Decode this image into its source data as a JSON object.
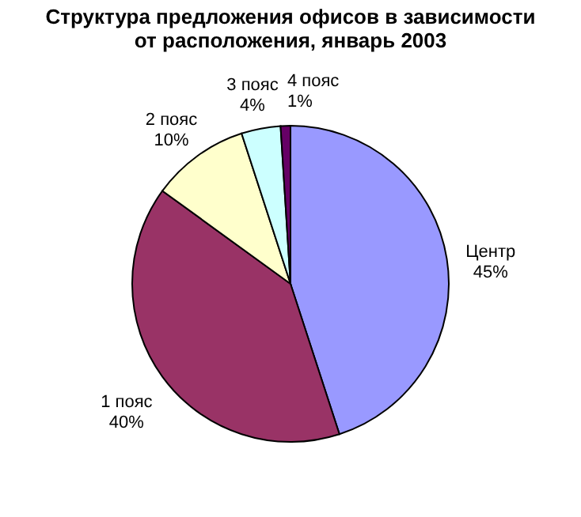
{
  "chart_data": {
    "type": "pie",
    "title": "Структура предложения офисов в зависимости\nот расположения, январь 2003",
    "categories": [
      "Центр",
      "1 пояс",
      "2 пояс",
      "3 пояс",
      "4 пояс"
    ],
    "values": [
      45,
      40,
      10,
      4,
      1
    ],
    "value_labels": [
      "45%",
      "40%",
      "10%",
      "4%",
      "1%"
    ],
    "colors": [
      "#9999ff",
      "#993366",
      "#ffffcc",
      "#ccffff",
      "#660066"
    ],
    "legend": false
  }
}
